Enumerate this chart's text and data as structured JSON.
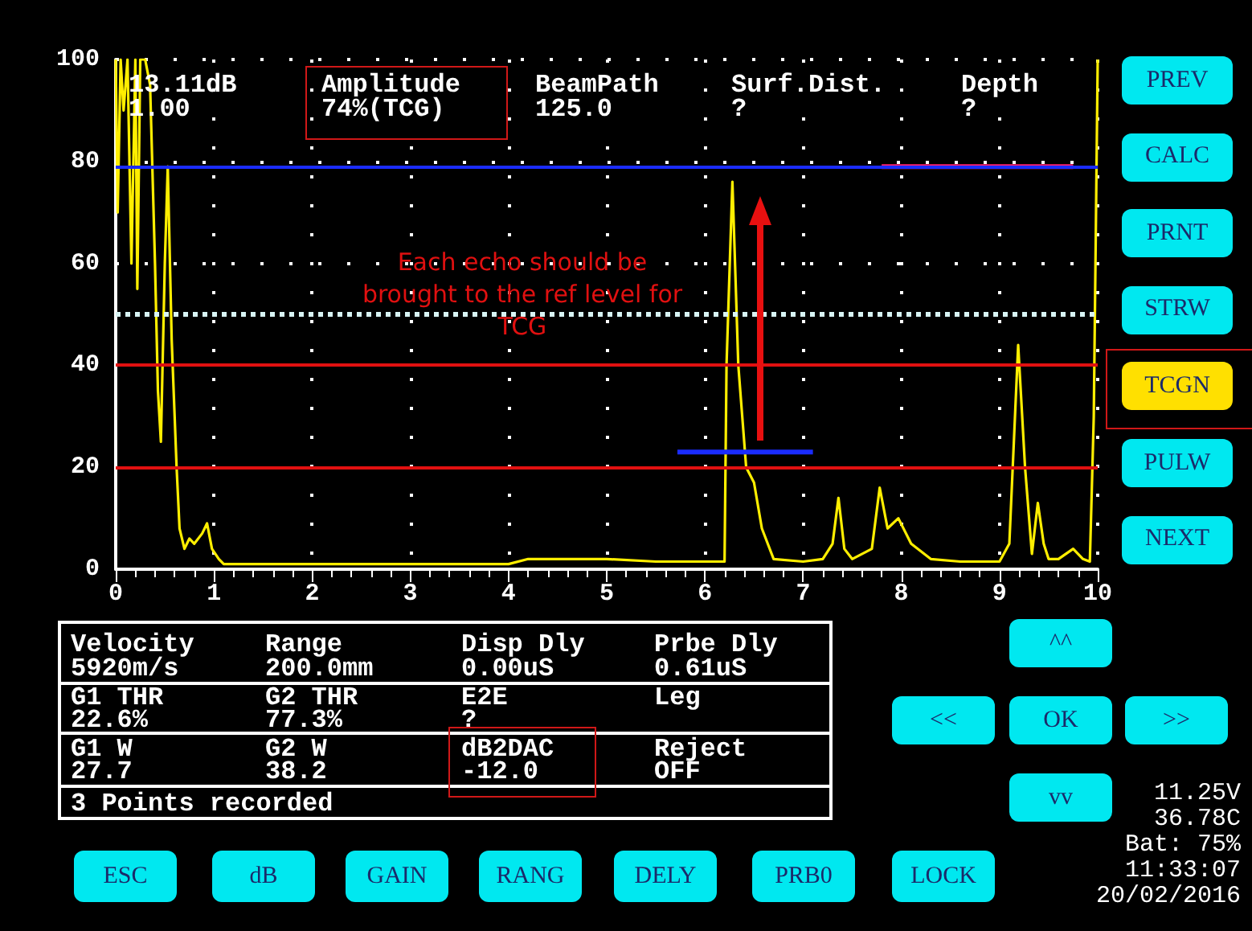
{
  "chart_data": [
    {
      "type": "line",
      "xlim": [
        0,
        10
      ],
      "ylim": [
        0,
        100
      ],
      "xticks": [
        0,
        1,
        2,
        3,
        4,
        5,
        6,
        7,
        8,
        9,
        10
      ],
      "yticks": [
        0,
        20,
        40,
        60,
        80,
        100
      ],
      "grid": true,
      "marker": "none",
      "line_style": "solid",
      "annotations": [
        "13.11dB",
        "1.00",
        "Amplitude",
        "74%(TCG)",
        "BeamPath",
        "125.0",
        "Surf.Dist.",
        "?",
        "Depth",
        "?",
        "Each echo should be brought to the ref level for TCG"
      ],
      "ref_lines": [
        {
          "axis": "y",
          "value": 79,
          "color": "#1a2cff",
          "line_style": "solid"
        },
        {
          "axis": "y",
          "value": 50,
          "color": "#d8f4f4",
          "line_style": "dotted"
        },
        {
          "axis": "y",
          "value": 40,
          "color": "#e01010",
          "line_style": "solid"
        },
        {
          "axis": "y",
          "value": 20,
          "color": "#e01010",
          "line_style": "solid"
        }
      ],
      "series": [
        {
          "color": "#ffee00",
          "x": [
            0,
            0.02,
            0.05,
            0.08,
            0.12,
            0.16,
            0.2,
            0.22,
            0.25,
            0.3,
            0.35,
            0.4,
            0.43,
            0.46,
            0.5,
            0.53,
            0.57,
            0.62,
            0.65,
            0.7,
            0.75,
            0.8,
            0.88,
            0.93,
            0.98,
            1.05,
            1.1,
            1.5,
            2,
            2.5,
            3,
            3.5,
            4,
            4.2,
            4.5,
            4.8,
            5,
            5.5,
            6,
            6.2,
            6.22,
            6.28,
            6.34,
            6.42,
            6.5,
            6.58,
            6.7,
            7,
            7.2,
            7.3,
            7.36,
            7.42,
            7.5,
            7.7,
            7.78,
            7.86,
            7.97,
            8.1,
            8.3,
            8.6,
            9,
            9.1,
            9.19,
            9.26,
            9.33,
            9.39,
            9.45,
            9.5,
            9.6,
            9.75,
            9.85,
            9.92,
            9.96,
            10
          ],
          "values": [
            100,
            70,
            100,
            90,
            100,
            60,
            100,
            55,
            100,
            100,
            95,
            60,
            35,
            25,
            60,
            79,
            45,
            20,
            8,
            4,
            6,
            5,
            7,
            9,
            4,
            2,
            1,
            1,
            1,
            1,
            1,
            1,
            1,
            2,
            2,
            2,
            2,
            1.5,
            1.5,
            1.5,
            40,
            76,
            40,
            20,
            17,
            8,
            2,
            1.5,
            2,
            5,
            14,
            4,
            2,
            4,
            16,
            8,
            10,
            5,
            2,
            1.5,
            1.5,
            5,
            44,
            20,
            3,
            13,
            5,
            2,
            2,
            4,
            2,
            1.5,
            30,
            100
          ]
        },
        {
          "color": "#1a2cff",
          "x": [
            5.72,
            7.1
          ],
          "values": [
            23,
            23
          ]
        },
        {
          "color": "#ff2070",
          "x": [
            7.8,
            9.75
          ],
          "values": [
            79,
            79
          ]
        }
      ]
    },
    {
      "type": "other",
      "annotations": [
        "Velocity",
        "Range",
        "Disp Dly",
        "Prbe Dly",
        "5920m/s",
        "200.0mm",
        "0.00uS",
        "0.61uS",
        "G1 THR",
        "G2 THR",
        "E2E",
        "Leg",
        "22.6%",
        "77.3%",
        "?",
        "G1 W",
        "G2 W",
        "dB2DAC",
        "Reject",
        "27.7",
        "38.2",
        "-12.0",
        "OFF",
        "3 Points recorded"
      ]
    },
    {
      "type": "other",
      "annotations": [
        "PREV",
        "CALC",
        "PRNT",
        "STRW",
        "TCGN",
        "PULW",
        "NEXT"
      ]
    },
    {
      "type": "other",
      "annotations": [
        "ESC",
        "dB",
        "GAIN",
        "RANG",
        "DELY",
        "PRB0",
        "LOCK",
        "^^",
        "<<",
        "OK",
        ">>",
        "vv",
        "11.25V",
        "36.78C",
        "Bat: 75%",
        "11:33:07",
        "20/02/2016"
      ]
    }
  ]
}
